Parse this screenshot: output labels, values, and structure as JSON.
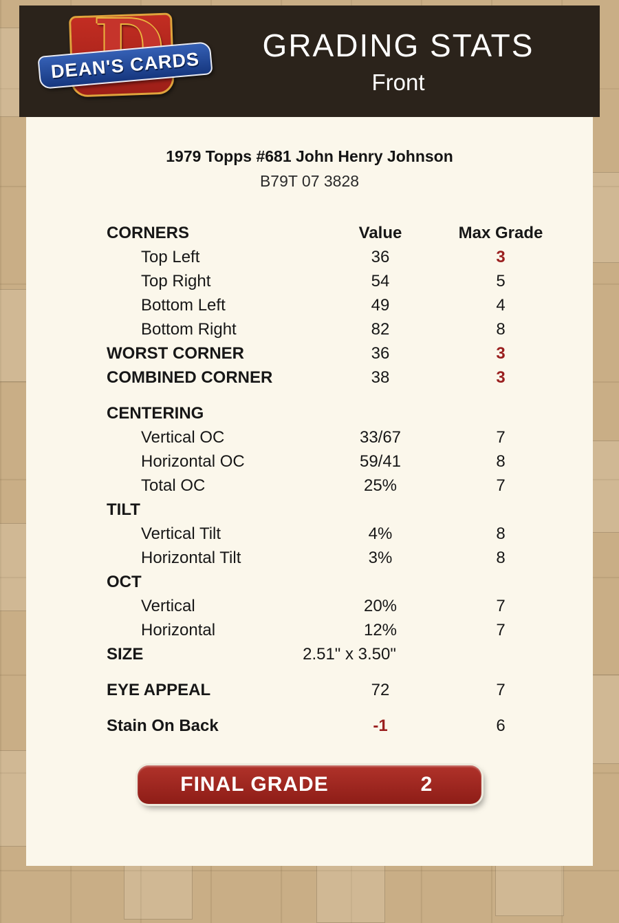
{
  "header": {
    "logo_text": "DEAN'S CARDS",
    "logo_letter": "D",
    "title": "GRADING STATS",
    "subtitle": "Front"
  },
  "card": {
    "title": "1979 Topps #681 John Henry Johnson",
    "code": "B79T 07 3828"
  },
  "rows": [
    {
      "label": "CORNERS",
      "value": "Value",
      "max": "Max Grade",
      "bold": true,
      "head": true
    },
    {
      "label": "Top Left",
      "value": "36",
      "max": "3",
      "indent": true,
      "mr": true
    },
    {
      "label": "Top Right",
      "value": "54",
      "max": "5",
      "indent": true
    },
    {
      "label": "Bottom Left",
      "value": "49",
      "max": "4",
      "indent": true
    },
    {
      "label": "Bottom Right",
      "value": "82",
      "max": "8",
      "indent": true
    },
    {
      "label": "WORST CORNER",
      "value": "36",
      "max": "3",
      "bold": true,
      "mr": true
    },
    {
      "label": "COMBINED CORNER",
      "value": "38",
      "max": "3",
      "bold": true,
      "mr": true
    },
    {
      "label": "CENTERING",
      "bold": true,
      "gap": true
    },
    {
      "label": "Vertical OC",
      "value": "33/67",
      "max": "7",
      "indent": true
    },
    {
      "label": "Horizontal OC",
      "value": "59/41",
      "max": "8",
      "indent": true
    },
    {
      "label": "Total OC",
      "value": "25%",
      "max": "7",
      "indent": true
    },
    {
      "label": "TILT",
      "bold": true
    },
    {
      "label": "Vertical Tilt",
      "value": "4%",
      "max": "8",
      "indent": true
    },
    {
      "label": "Horizontal Tilt",
      "value": "3%",
      "max": "8",
      "indent": true
    },
    {
      "label": "OCT",
      "bold": true
    },
    {
      "label": "Vertical",
      "value": "20%",
      "max": "7",
      "indent": true
    },
    {
      "label": "Horizontal",
      "value": "12%",
      "max": "7",
      "indent": true
    },
    {
      "label": "SIZE",
      "value": "2.51\" x 3.50\"",
      "bold": true,
      "size_row": true
    },
    {
      "label": "EYE APPEAL",
      "value": "72",
      "max": "7",
      "bold": true,
      "gap": true
    },
    {
      "label": "Stain On Back",
      "value": "-1",
      "max": "6",
      "bold": true,
      "vr": true,
      "gap": true
    }
  ],
  "final": {
    "label": "FINAL GRADE",
    "value": "2"
  },
  "colors": {
    "page_bg": "#c9ae86",
    "header_bg": "#2b231b",
    "panel_bg": "#fbf7eb",
    "accent_red": "#9a1f1f",
    "final_pill_bg": "#9e2620",
    "logo_red": "#c22d22",
    "logo_gold": "#e0a33c",
    "logo_blue": "#16377f"
  }
}
